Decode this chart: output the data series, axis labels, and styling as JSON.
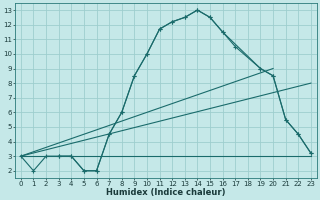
{
  "xlabel": "Humidex (Indice chaleur)",
  "background_color": "#c5e8e8",
  "grid_color": "#9ecece",
  "line_color": "#1a6b6b",
  "xlim": [
    -0.5,
    23.5
  ],
  "ylim": [
    1.5,
    13.5
  ],
  "xticks": [
    0,
    1,
    2,
    3,
    4,
    5,
    6,
    7,
    8,
    9,
    10,
    11,
    12,
    13,
    14,
    15,
    16,
    17,
    18,
    19,
    20,
    21,
    22,
    23
  ],
  "yticks": [
    2,
    3,
    4,
    5,
    6,
    7,
    8,
    9,
    10,
    11,
    12,
    13
  ],
  "line1": {
    "x": [
      0,
      1,
      2,
      3,
      4,
      5,
      6,
      7,
      8,
      9,
      10,
      11,
      12,
      13,
      14,
      15,
      16,
      17,
      19,
      20,
      21,
      22,
      23
    ],
    "y": [
      3,
      2,
      3,
      3,
      3,
      2,
      2,
      4.5,
      6,
      8.5,
      10,
      11.7,
      12.2,
      12.5,
      13,
      12.5,
      11.5,
      10.5,
      9,
      8.5,
      5.5,
      4.5,
      3.2
    ]
  },
  "line2": {
    "x": [
      3,
      4,
      5,
      6,
      7,
      8,
      9,
      10,
      11,
      12,
      13,
      14,
      15,
      16,
      19,
      20,
      21,
      22,
      23
    ],
    "y": [
      3,
      3,
      2,
      2,
      4.5,
      6,
      8.5,
      10,
      11.7,
      12.2,
      12.5,
      13,
      12.5,
      11.5,
      9,
      8.5,
      5.5,
      4.5,
      3.2
    ]
  },
  "line3_flat": {
    "x": [
      0,
      23
    ],
    "y": [
      3,
      3
    ]
  },
  "line4_diag1": {
    "x": [
      0,
      20
    ],
    "y": [
      3,
      9
    ]
  },
  "line5_diag2": {
    "x": [
      0,
      23
    ],
    "y": [
      3,
      8
    ]
  }
}
